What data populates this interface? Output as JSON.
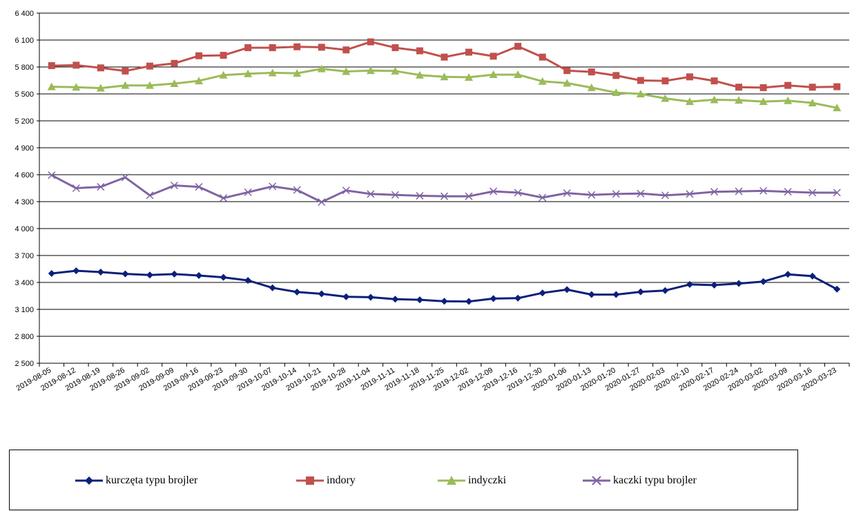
{
  "chart_data": {
    "type": "line",
    "title": "",
    "xlabel": "",
    "ylabel": "",
    "ylim": [
      2500,
      6400
    ],
    "yticks": [
      2500,
      2800,
      3100,
      3400,
      3700,
      4000,
      4300,
      4600,
      4900,
      5200,
      5500,
      5800,
      6100,
      6400
    ],
    "ytick_labels": [
      "2 500",
      "2 800",
      "3 100",
      "3 400",
      "3 700",
      "4 000",
      "4 300",
      "4 600",
      "4 900",
      "5 200",
      "5 500",
      "5 800",
      "6 100",
      "6 400"
    ],
    "grid": true,
    "legend_position": "bottom",
    "categories": [
      "2019-08-05",
      "2019-08-12",
      "2019-08-19",
      "2019-08-26",
      "2019-09-02",
      "2019-09-09",
      "2019-09-16",
      "2019-09-23",
      "2019-09-30",
      "2019-10-07",
      "2019-10-14",
      "2019-10-21",
      "2019-10-28",
      "2019-11-04",
      "2019-11-11",
      "2019-11-18",
      "2019-11-25",
      "2019-12-02",
      "2019-12-09",
      "2019-12-16",
      "2019-12-30",
      "2020-01-06",
      "2020-01-13",
      "2020-01-20",
      "2020-01-27",
      "2020-02-03",
      "2020-02-10",
      "2020-02-17",
      "2020-02-24",
      "2020-03-02",
      "2020-03-09",
      "2020-03-16",
      "2020-03-23"
    ],
    "series": [
      {
        "name": "kurczęta typu brojler",
        "color": "#0c1f7a",
        "marker": "diamond",
        "values": [
          3500,
          3530,
          3515,
          3495,
          3483,
          3493,
          3477,
          3457,
          3422,
          3340,
          3293,
          3273,
          3240,
          3235,
          3213,
          3207,
          3190,
          3188,
          3220,
          3225,
          3283,
          3320,
          3265,
          3265,
          3295,
          3310,
          3378,
          3370,
          3388,
          3410,
          3490,
          3470,
          3325
        ]
      },
      {
        "name": "indory",
        "color": "#c0504d",
        "marker": "square",
        "values": [
          5815,
          5820,
          5790,
          5755,
          5810,
          5840,
          5925,
          5930,
          6015,
          6015,
          6025,
          6020,
          5990,
          6080,
          6015,
          5980,
          5910,
          5965,
          5920,
          6030,
          5910,
          5760,
          5745,
          5705,
          5650,
          5645,
          5690,
          5645,
          5575,
          5570,
          5595,
          5575,
          5580
        ]
      },
      {
        "name": "indyczki",
        "color": "#9bbb59",
        "marker": "triangle",
        "values": [
          5580,
          5575,
          5565,
          5595,
          5595,
          5615,
          5645,
          5710,
          5725,
          5735,
          5730,
          5780,
          5750,
          5760,
          5755,
          5710,
          5690,
          5685,
          5715,
          5715,
          5640,
          5620,
          5570,
          5515,
          5500,
          5450,
          5415,
          5435,
          5430,
          5415,
          5425,
          5400,
          5345
        ]
      },
      {
        "name": "kaczki typu brojler",
        "color": "#8064a2",
        "marker": "x",
        "values": [
          4595,
          4450,
          4465,
          4570,
          4370,
          4480,
          4465,
          4340,
          4405,
          4470,
          4430,
          4295,
          4425,
          4385,
          4375,
          4365,
          4360,
          4360,
          4415,
          4400,
          4345,
          4395,
          4375,
          4385,
          4390,
          4370,
          4385,
          4410,
          4415,
          4420,
          4410,
          4400,
          4400
        ]
      }
    ]
  }
}
